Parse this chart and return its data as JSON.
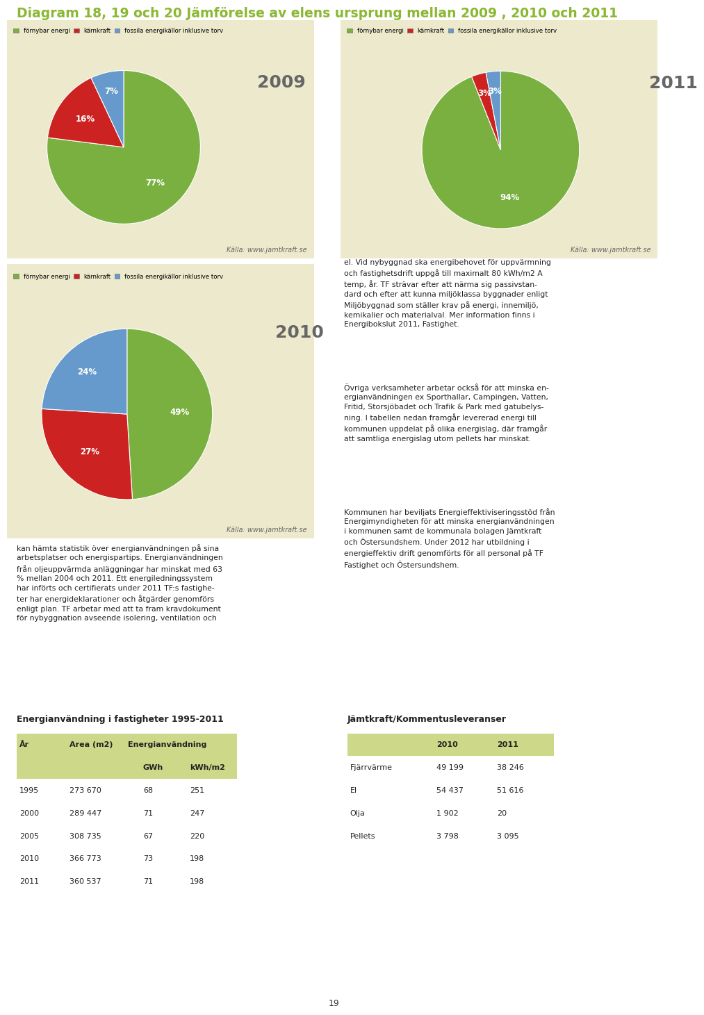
{
  "title": "Diagram 18, 19 och 20 Jämförelse av elens ursprung mellan 2009 , 2010 och 2011",
  "title_color": "#8ab832",
  "panel_bg": "#ede9cc",
  "page_bg": "#ffffff",
  "pie2009": {
    "values": [
      77,
      16,
      7
    ],
    "labels": [
      "77%",
      "16%",
      "7%"
    ],
    "colors": [
      "#7ab040",
      "#cc2222",
      "#6699cc"
    ],
    "year": "2009"
  },
  "pie2010": {
    "values": [
      49,
      27,
      24
    ],
    "labels": [
      "49%",
      "27%",
      "24%"
    ],
    "colors": [
      "#7ab040",
      "#cc2222",
      "#6699cc"
    ],
    "year": "2010"
  },
  "pie2011": {
    "values": [
      94,
      3,
      3
    ],
    "labels": [
      "94%",
      "3%",
      "3%"
    ],
    "colors": [
      "#7ab040",
      "#cc2222",
      "#6699cc"
    ],
    "year": "2011"
  },
  "legend_labels": [
    "förnybar energi",
    "kärnkraft",
    "fossila energikällor inklusive torv"
  ],
  "legend_colors": [
    "#7ab040",
    "#cc2222",
    "#6699cc"
  ],
  "source": "Källa: www.jamtkraft.se",
  "left_text": "kan hämta statistik över energianvändningen på sina\narbetsplatser och energispartips. Energianvändningen\nfrån oljeuppvärmda anläggningar har minskat med 63\n% mellan 2004 och 2011. Ett energiledningssystem\nhar införts och certifierats under 2011 TF:s fastighe-\nter har energideklarationer och åtgärder genomförs\nenligt plan. TF arbetar med att ta fram kravdokument\nför nybyggnation avseende isolering, ventilation och",
  "right_text_p1": "el. Vid nybyggnad ska energibehovet för uppvärmning\noch fastighetsdrift uppgå till maximalt 80 kWh/m2 A\ntemp, år. TF strävar efter att närma sig passivstan-\ndard och efter att kunna miljöklassa byggnader enligt\nMiljöbyggnad som ställer krav på energi, innemiljö,\nkemikalier och materialval. Mer information finns i\nEnergibokslut 2011, Fastighet.",
  "right_text_p2": "Övriga verksamheter arbetar också för att minska en-\nergianvändningen ex Sporthallar, Campingen, Vatten,\nFritid, Storsjöbadet och Trafik & Park med gatubelys-\nning. I tabellen nedan framgår levererad energi till\nkommunen uppdelat på olika energislag, där framgår\natt samtliga energislag utom pellets har minskat.",
  "right_text_p3": "Kommunen har beviljats Energieffektiviseringsstöd från\nEnergimyndigheten för att minska energianvändningen\ni kommunen samt de kommunala bolagen Jämtkraft\noch Östersundshem. Under 2012 har utbildning i\nenergieffektiv drift genomförts för all personal på TF\nFastighet och Östersundshem.",
  "table1_title": "Energianvändning i fastigheter 1995-2011",
  "table1_rows": [
    [
      "1995",
      "273 670",
      "68",
      "251"
    ],
    [
      "2000",
      "289 447",
      "71",
      "247"
    ],
    [
      "2005",
      "308 735",
      "67",
      "220"
    ],
    [
      "2010",
      "366 773",
      "73",
      "198"
    ],
    [
      "2011",
      "360 537",
      "71",
      "198"
    ]
  ],
  "table2_title": "Jämtkraft/Kommentusleveranser",
  "table2_rows": [
    [
      "Fjärrvärme",
      "49 199",
      "38 246"
    ],
    [
      "El",
      "54 437",
      "51 616"
    ],
    [
      "Olja",
      "1 902",
      "20"
    ],
    [
      "Pellets",
      "3 798",
      "3 095"
    ]
  ],
  "page_number": "19"
}
